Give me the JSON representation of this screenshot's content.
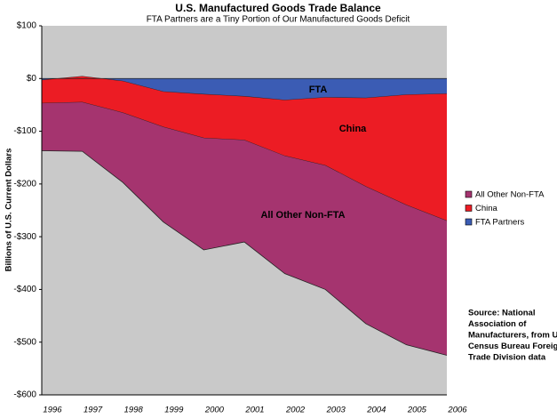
{
  "chart_data": {
    "type": "stacked-area",
    "title": "U.S. Manufactured Goods Trade Balance",
    "subtitle": "FTA Partners are a Tiny Portion of Our Manufactured Goods Deficit",
    "y_label": "Billions of U.S. Current Dollars",
    "categories": [
      "1996",
      "1997",
      "1998",
      "1999",
      "2000",
      "2001",
      "2002",
      "2003",
      "2004",
      "2005",
      "2006"
    ],
    "series": [
      {
        "name": "FTA Partners",
        "color": "#3b5cb4",
        "values": [
          -3,
          4,
          -5,
          -25,
          -30,
          -34,
          -41,
          -36,
          -37,
          -31,
          -29
        ]
      },
      {
        "name": "China",
        "color": "#ec1c24",
        "values": [
          -44,
          -49,
          -60,
          -67,
          -83,
          -83,
          -106,
          -129,
          -168,
          -209,
          -241
        ]
      },
      {
        "name": "All Other Non-FTA",
        "color": "#a5346f",
        "values": [
          -90,
          -93,
          -132,
          -180,
          -212,
          -193,
          -223,
          -235,
          -260,
          -265,
          -255
        ]
      }
    ],
    "legend_order": [
      2,
      1,
      0
    ],
    "ylim": [
      -600,
      100
    ],
    "yticks": [
      {
        "value": -600,
        "label": "-$600"
      },
      {
        "value": -500,
        "label": "-$500"
      },
      {
        "value": -400,
        "label": "-$400"
      },
      {
        "value": -300,
        "label": "-$300"
      },
      {
        "value": -200,
        "label": "-$200"
      },
      {
        "value": -100,
        "label": "-$100"
      },
      {
        "value": 0,
        "label": "$0"
      },
      {
        "value": 100,
        "label": "$100"
      }
    ],
    "area_labels": [
      "FTA",
      "China",
      "All Other Non-FTA"
    ],
    "source": [
      "Source: National",
      "Association of",
      "Manufacturers, from U.S.",
      "Census Bureau Foreign",
      "Trade Division data"
    ]
  }
}
